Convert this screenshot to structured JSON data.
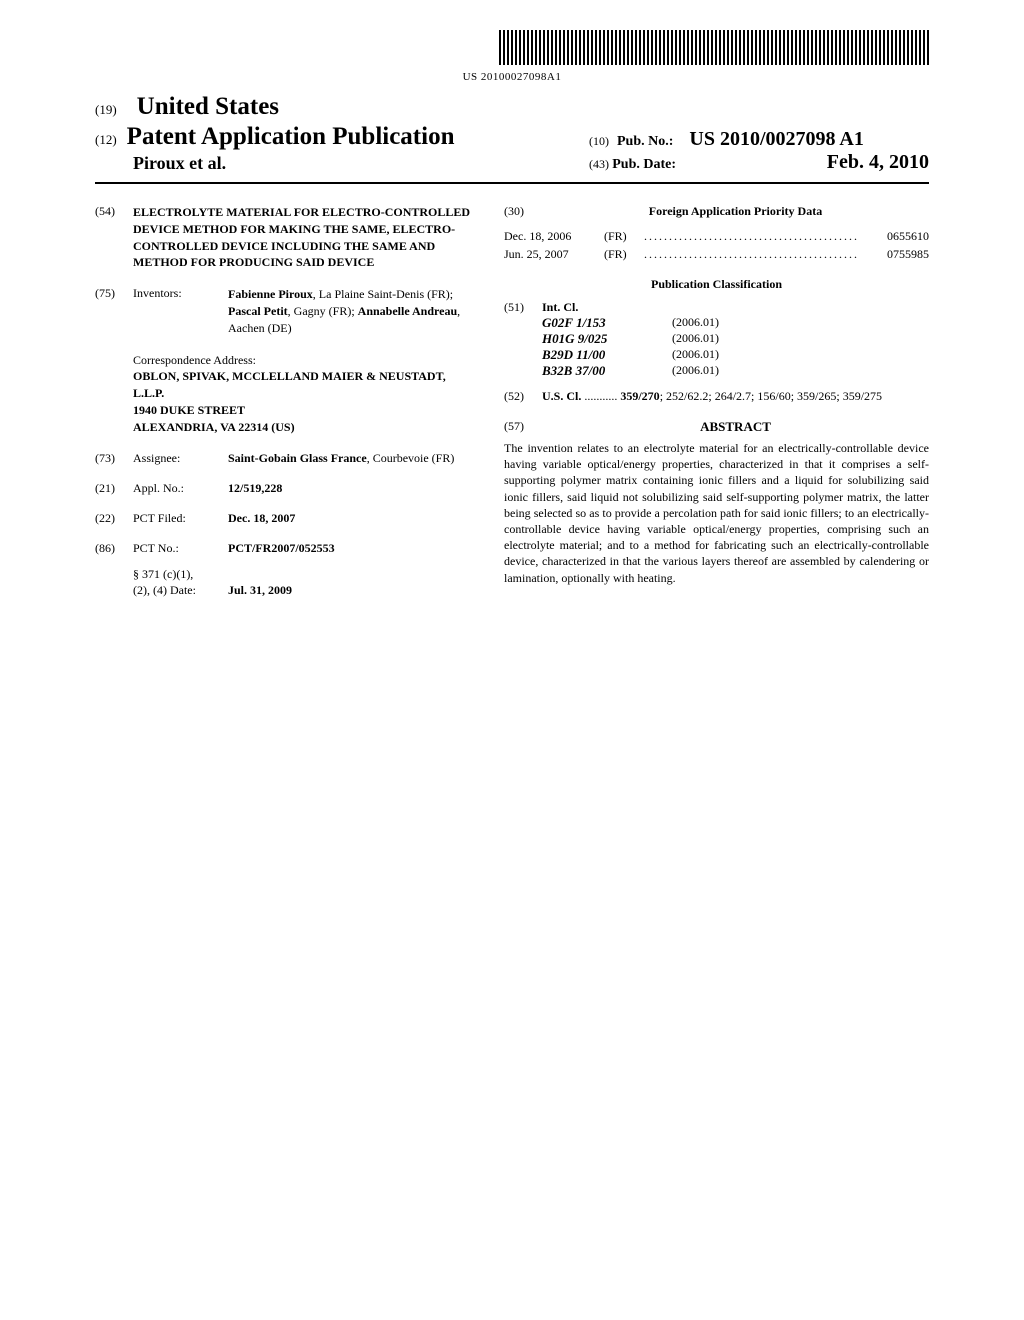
{
  "barcode_text": "US 20100027098A1",
  "header": {
    "code19": "(19)",
    "country": "United States",
    "code12": "(12)",
    "pub_type": "Patent Application Publication",
    "authors": "Piroux et al.",
    "code10": "(10)",
    "pub_no_label": "Pub. No.:",
    "pub_no": "US 2010/0027098 A1",
    "code43": "(43)",
    "pub_date_label": "Pub. Date:",
    "pub_date": "Feb. 4, 2010"
  },
  "title": {
    "code": "(54)",
    "text": "ELECTROLYTE MATERIAL FOR ELECTRO-CONTROLLED DEVICE METHOD FOR MAKING THE SAME, ELECTRO-CONTROLLED DEVICE INCLUDING THE SAME AND METHOD FOR PRODUCING SAID DEVICE"
  },
  "inventors": {
    "code": "(75)",
    "label": "Inventors:",
    "names_html": "<b>Fabienne Piroux</b>, La Plaine Saint-Denis (FR); <b>Pascal Petit</b>, Gagny (FR); <b>Annabelle Andreau</b>, Aachen (DE)"
  },
  "correspondence": {
    "label": "Correspondence Address:",
    "line1": "OBLON, SPIVAK, MCCLELLAND MAIER & NEUSTADT, L.L.P.",
    "line2": "1940 DUKE STREET",
    "line3": "ALEXANDRIA, VA 22314 (US)"
  },
  "assignee": {
    "code": "(73)",
    "label": "Assignee:",
    "name": "Saint-Gobain Glass France",
    "loc": "Courbevoie (FR)"
  },
  "appl_no": {
    "code": "(21)",
    "label": "Appl. No.:",
    "value": "12/519,228"
  },
  "pct_filed": {
    "code": "(22)",
    "label": "PCT Filed:",
    "value": "Dec. 18, 2007"
  },
  "pct_no": {
    "code": "(86)",
    "label": "PCT No.:",
    "value": "PCT/FR2007/052553"
  },
  "s371": {
    "label1": "§ 371 (c)(1),",
    "label2": "(2), (4) Date:",
    "value": "Jul. 31, 2009"
  },
  "foreign": {
    "code": "(30)",
    "header": "Foreign Application Priority Data",
    "rows": [
      {
        "date": "Dec. 18, 2006",
        "country": "(FR)",
        "num": "0655610"
      },
      {
        "date": "Jun. 25, 2007",
        "country": "(FR)",
        "num": "0755985"
      }
    ]
  },
  "pub_class_header": "Publication Classification",
  "intcl": {
    "code": "(51)",
    "label": "Int. Cl.",
    "rows": [
      {
        "class": "G02F 1/153",
        "year": "(2006.01)"
      },
      {
        "class": "H01G 9/025",
        "year": "(2006.01)"
      },
      {
        "class": "B29D 11/00",
        "year": "(2006.01)"
      },
      {
        "class": "B32B 37/00",
        "year": "(2006.01)"
      }
    ]
  },
  "uscl": {
    "code": "(52)",
    "label": "U.S. Cl.",
    "main": "359/270",
    "rest": "; 252/62.2; 264/2.7; 156/60; 359/265; 359/275"
  },
  "abstract": {
    "code": "(57)",
    "header": "ABSTRACT",
    "text": "The invention relates to an electrolyte material for an electrically-controllable device having variable optical/energy properties, characterized in that it comprises a self-supporting polymer matrix containing ionic fillers and a liquid for solubilizing said ionic fillers, said liquid not solubilizing said self-supporting polymer matrix, the latter being selected so as to provide a percolation path for said ionic fillers; to an electrically-controllable device having variable optical/energy properties, comprising such an electrolyte material; and to a method for fabricating such an electrically-controllable device, characterized in that the various layers thereof are assembled by calendering or lamination, optionally with heating."
  }
}
